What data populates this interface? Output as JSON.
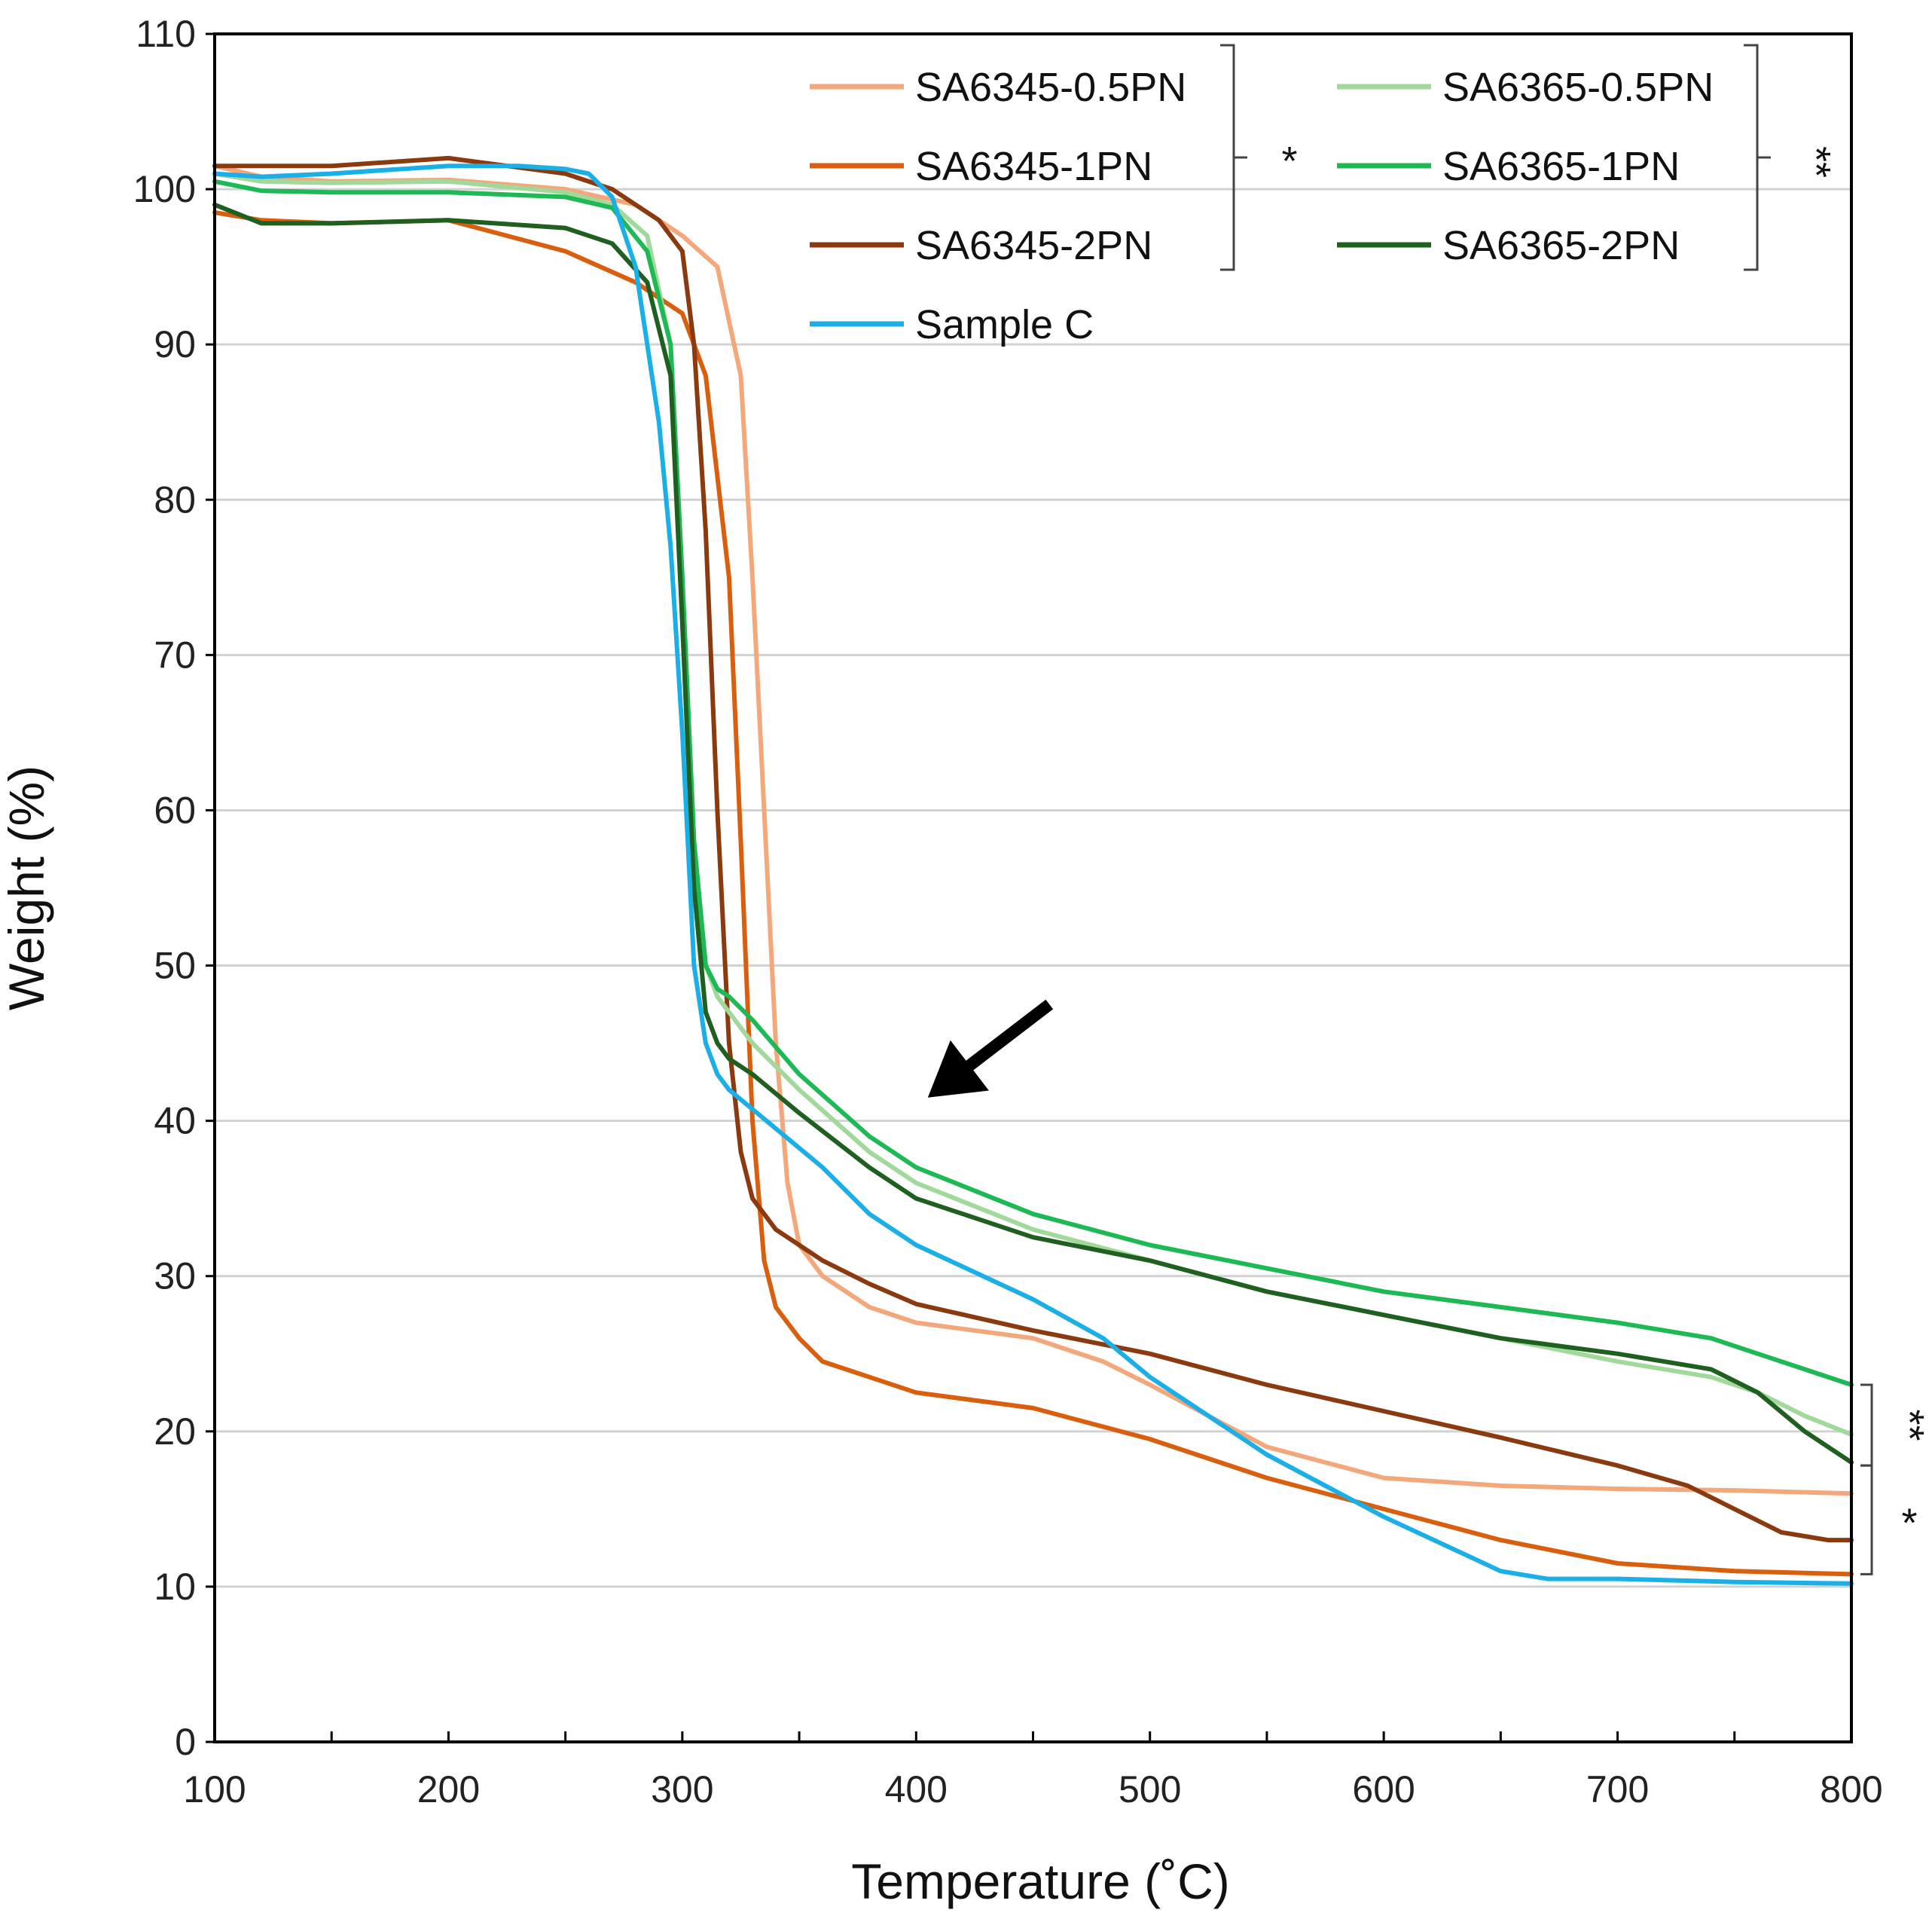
{
  "chart_data": {
    "type": "line",
    "title": "",
    "xlabel": "Temperature (˚C)",
    "ylabel": "Weight (%)",
    "xlim": [
      100,
      800
    ],
    "ylim": [
      0,
      110
    ],
    "xticks": [
      100,
      200,
      300,
      400,
      500,
      600,
      700,
      800
    ],
    "yticks": [
      0,
      10,
      20,
      30,
      40,
      50,
      60,
      70,
      80,
      90,
      100,
      110
    ],
    "grid": true,
    "legend_position": "top-right",
    "series": [
      {
        "name": "SA6345-0.5PN",
        "color": "#F4A77A",
        "x": [
          100,
          120,
          150,
          200,
          250,
          280,
          300,
          315,
          325,
          330,
          335,
          340,
          345,
          350,
          360,
          380,
          400,
          450,
          480,
          500,
          550,
          600,
          650,
          700,
          750,
          800
        ],
        "y": [
          101.5,
          100.8,
          100.5,
          100.6,
          100,
          99,
          97,
          95,
          88,
          75,
          60,
          45,
          36,
          32,
          30,
          28,
          27,
          26,
          24.5,
          23,
          19,
          17,
          16.5,
          16.3,
          16.2,
          16
        ]
      },
      {
        "name": "SA6345-1PN",
        "color": "#D95F0E",
        "x": [
          100,
          120,
          150,
          200,
          250,
          280,
          300,
          310,
          320,
          325,
          330,
          335,
          340,
          350,
          360,
          380,
          400,
          450,
          500,
          550,
          600,
          650,
          700,
          750,
          800
        ],
        "y": [
          98.5,
          98,
          97.8,
          98,
          96,
          94,
          92,
          88,
          75,
          58,
          40,
          31,
          28,
          26,
          24.5,
          23.5,
          22.5,
          21.5,
          19.5,
          17,
          15,
          13,
          11.5,
          11,
          10.8
        ]
      },
      {
        "name": "SA6345-2PN",
        "color": "#8B3A0F",
        "x": [
          100,
          120,
          150,
          200,
          250,
          270,
          290,
          300,
          305,
          310,
          315,
          320,
          325,
          330,
          340,
          360,
          380,
          400,
          450,
          500,
          550,
          600,
          650,
          700,
          730,
          750,
          770,
          790,
          800
        ],
        "y": [
          101.5,
          101.5,
          101.5,
          102,
          101,
          100,
          98,
          96,
          90,
          78,
          60,
          45,
          38,
          35,
          33,
          31,
          29.5,
          28.2,
          26.5,
          25,
          23,
          21.3,
          19.6,
          17.8,
          16.5,
          15,
          13.5,
          13,
          13
        ]
      },
      {
        "name": "SA6365-0.5PN",
        "color": "#A1D99B",
        "x": [
          100,
          120,
          150,
          200,
          250,
          270,
          285,
          295,
          300,
          305,
          310,
          315,
          320,
          330,
          350,
          380,
          400,
          450,
          500,
          550,
          600,
          650,
          700,
          740,
          760,
          780,
          800
        ],
        "y": [
          101,
          100.5,
          100.4,
          100.5,
          99.8,
          99,
          97,
          90,
          75,
          58,
          50,
          48,
          47,
          45,
          42,
          38,
          36,
          33,
          31,
          29,
          27.5,
          26,
          24.5,
          23.5,
          22.5,
          21,
          19.8
        ]
      },
      {
        "name": "SA6365-1PN",
        "color": "#1DB954",
        "x": [
          100,
          120,
          150,
          200,
          250,
          270,
          285,
          295,
          300,
          305,
          310,
          315,
          320,
          330,
          350,
          380,
          400,
          450,
          500,
          550,
          600,
          650,
          700,
          740,
          760,
          780,
          800
        ],
        "y": [
          100.5,
          99.9,
          99.8,
          99.8,
          99.5,
          98.8,
          96,
          90,
          75,
          58,
          50,
          48.5,
          48,
          46.5,
          43,
          39,
          37,
          34,
          32,
          30.5,
          29,
          28,
          27,
          26,
          25,
          24,
          23
        ]
      },
      {
        "name": "SA6365-2PN",
        "color": "#1F5F1F",
        "x": [
          100,
          120,
          150,
          200,
          250,
          270,
          285,
          295,
          300,
          305,
          310,
          315,
          320,
          330,
          350,
          380,
          400,
          450,
          500,
          550,
          600,
          650,
          700,
          740,
          760,
          780,
          800
        ],
        "y": [
          99,
          97.8,
          97.8,
          98,
          97.5,
          96.5,
          94,
          88,
          72,
          55,
          47,
          45,
          44,
          43,
          40.5,
          37,
          35,
          32.5,
          31,
          29,
          27.5,
          26,
          25,
          24,
          22.5,
          20,
          18
        ]
      },
      {
        "name": "Sample C",
        "color": "#1AAFE6",
        "x": [
          100,
          120,
          150,
          200,
          230,
          250,
          260,
          270,
          280,
          290,
          295,
          300,
          305,
          310,
          315,
          320,
          340,
          360,
          380,
          400,
          450,
          480,
          500,
          550,
          600,
          650,
          670,
          700,
          750,
          800
        ],
        "y": [
          101,
          100.8,
          101,
          101.5,
          101.5,
          101.3,
          101,
          99.5,
          95,
          85,
          77,
          65,
          50,
          45,
          43,
          42,
          39.5,
          37,
          34,
          32,
          28.5,
          26,
          23.5,
          18.5,
          14.5,
          11,
          10.5,
          10.5,
          10.3,
          10.2
        ]
      }
    ],
    "annotations": {
      "arrow": {
        "from": [
          457,
          47.5
        ],
        "to": [
          405,
          41.5
        ],
        "direction": "down-left"
      },
      "legend_brackets": [
        {
          "groups": [
            "SA6345-0.5PN",
            "SA6345-1PN",
            "SA6345-2PN"
          ],
          "marker": "*"
        },
        {
          "groups": [
            "SA6365-0.5PN",
            "SA6365-1PN",
            "SA6365-2PN"
          ],
          "marker": "**"
        }
      ],
      "end_brackets": [
        {
          "label": "**",
          "y_range": [
            17.8,
            23
          ]
        },
        {
          "label": "*",
          "y_range": [
            10.8,
            17.8
          ]
        }
      ]
    }
  },
  "colors": {
    "axis": "#000000",
    "grid": "#d2d2d2",
    "arrow": "#000000"
  }
}
